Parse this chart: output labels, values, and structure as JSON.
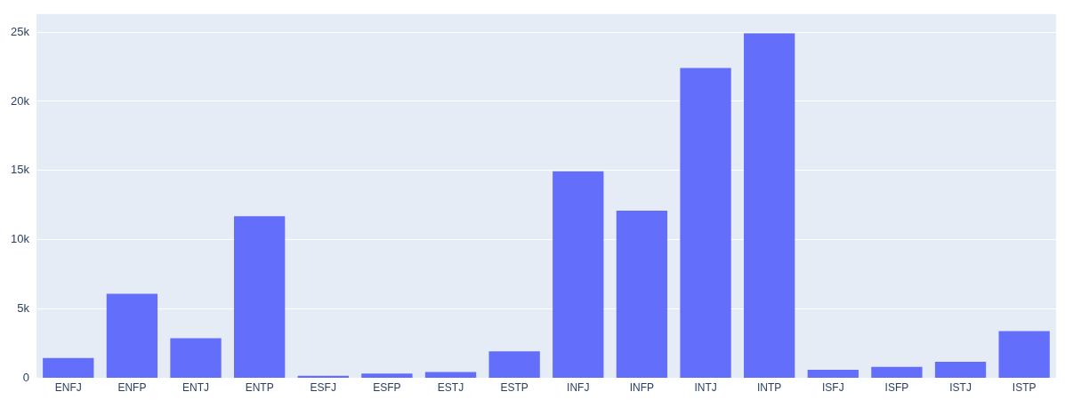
{
  "chart_data": {
    "type": "bar",
    "categories": [
      "ENFJ",
      "ENFP",
      "ENTJ",
      "ENTP",
      "ESFJ",
      "ESFP",
      "ESTJ",
      "ESTP",
      "INFJ",
      "INFP",
      "INTJ",
      "INTP",
      "ISFJ",
      "ISFP",
      "ISTJ",
      "ISTP"
    ],
    "values": [
      1470,
      6100,
      2900,
      11700,
      180,
      350,
      450,
      1950,
      14950,
      12100,
      22400,
      24900,
      620,
      830,
      1200,
      3400
    ],
    "color": "#636efa",
    "ylim": [
      0,
      26300
    ],
    "yticks": [
      0,
      {
        "value": 5000,
        "label": "5k"
      },
      {
        "value": 10000,
        "label": "10k"
      },
      {
        "value": 15000,
        "label": "15k"
      },
      {
        "value": 20000,
        "label": "20k"
      },
      {
        "value": 25000,
        "label": "25k"
      }
    ],
    "grid": "y"
  }
}
